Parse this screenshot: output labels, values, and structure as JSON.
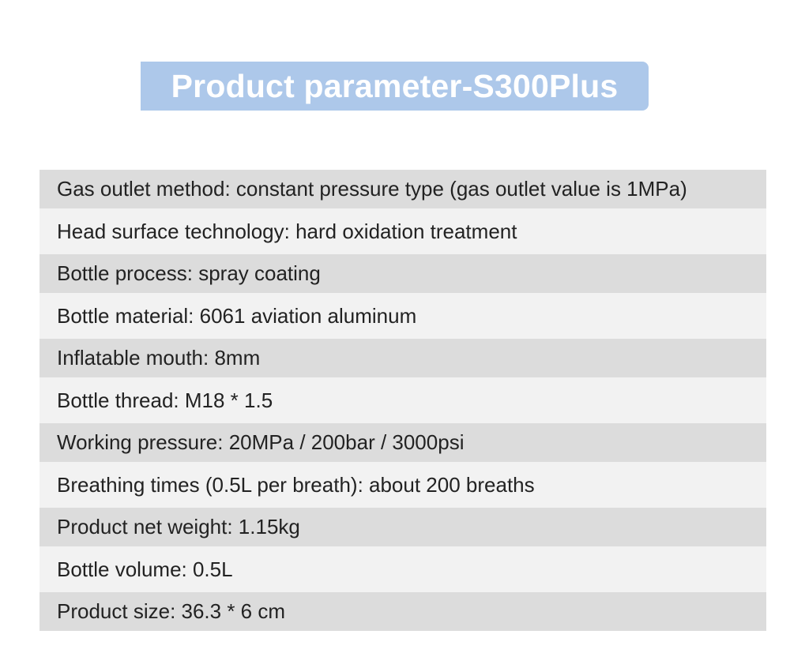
{
  "header": {
    "title": "Product parameter-S300Plus",
    "banner_color": "#adc8ea"
  },
  "parameters": [
    "Gas outlet method: constant pressure type (gas outlet value is 1MPa)",
    "Head surface technology: hard oxidation treatment",
    "Bottle process: spray coating",
    "Bottle material: 6061 aviation aluminum",
    "Inflatable mouth: 8mm",
    "Bottle thread: M18 * 1.5",
    "Working pressure: 20MPa / 200bar / 3000psi",
    "Breathing times (0.5L per breath): about 200 breaths",
    "Product net weight: 1.15kg",
    "Bottle volume: 0.5L",
    "Product size: 36.3 * 6 cm"
  ],
  "colors": {
    "row_shaded": "#dcdcdc",
    "row_light": "#f2f2f2",
    "text": "#222222"
  }
}
